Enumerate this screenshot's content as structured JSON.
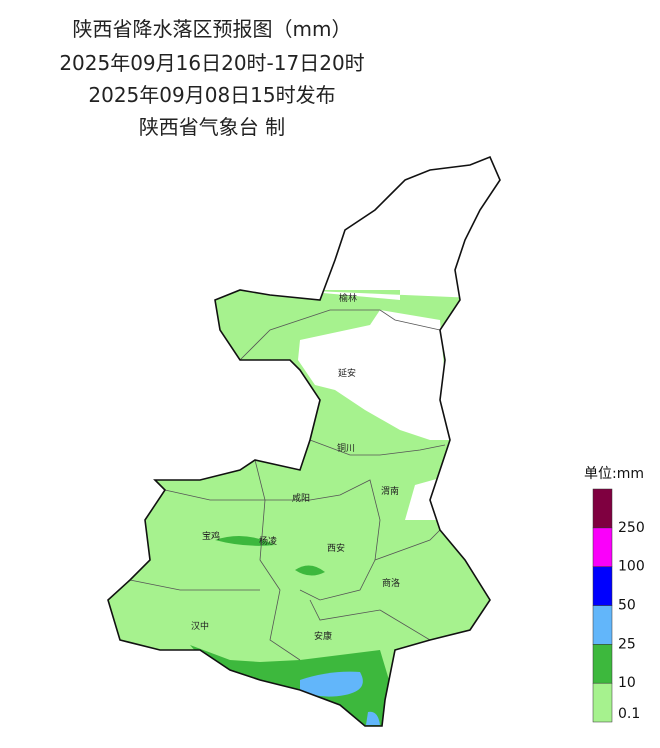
{
  "header": {
    "lines": [
      "陕西省降水落区预报图（mm）",
      "2025年09月16日20时-17日20时",
      "2025年09月08日15时发布",
      "陕西省气象台 制"
    ]
  },
  "cities": [
    "榆林",
    "延安",
    "铜川",
    "渭南",
    "咸阳",
    "宝鸡",
    "杨凌",
    "西安",
    "商洛",
    "汉中",
    "安康"
  ],
  "legend": {
    "title": "单位:mm",
    "ticks": [
      0.1,
      10,
      25,
      50,
      100,
      250
    ],
    "colors": [
      "#a6f28e",
      "#3db83d",
      "#62b6fa",
      "#0000fe",
      "#fa00fa",
      "#7f0040"
    ]
  }
}
